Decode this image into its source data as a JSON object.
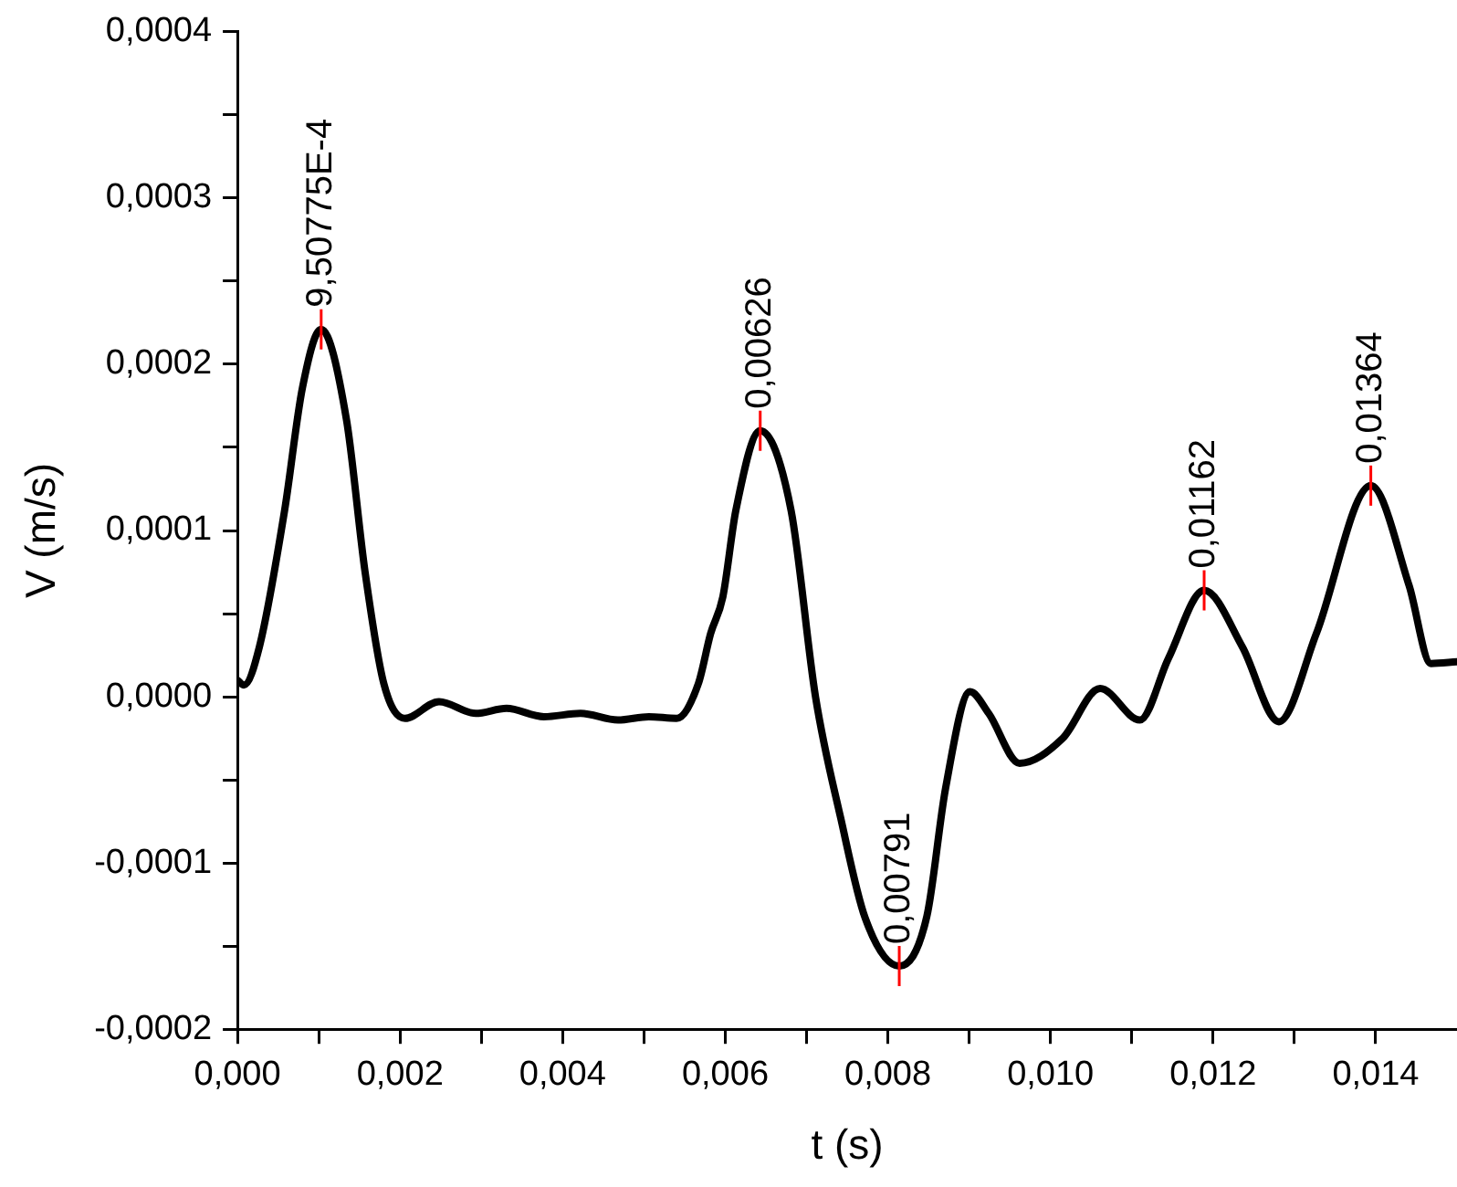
{
  "chart_data": {
    "type": "line",
    "xlabel": "t (s)",
    "ylabel": "V (m/s)",
    "legend": false,
    "grid": false,
    "marker": "none",
    "line_style": "solid",
    "xlim": [
      0,
      0.015
    ],
    "ylim": [
      -0.0002,
      0.0004
    ],
    "xticks": [
      {
        "value": 0,
        "label": "0,000"
      },
      {
        "value": 0.001,
        "label": null
      },
      {
        "value": 0.002,
        "label": "0,002"
      },
      {
        "value": 0.003,
        "label": null
      },
      {
        "value": 0.004,
        "label": "0,004"
      },
      {
        "value": 0.005,
        "label": null
      },
      {
        "value": 0.006,
        "label": "0,006"
      },
      {
        "value": 0.007,
        "label": null
      },
      {
        "value": 0.008,
        "label": "0,008"
      },
      {
        "value": 0.009,
        "label": null
      },
      {
        "value": 0.01,
        "label": "0,010"
      },
      {
        "value": 0.011,
        "label": null
      },
      {
        "value": 0.012,
        "label": "0,012"
      },
      {
        "value": 0.013,
        "label": null
      },
      {
        "value": 0.014,
        "label": "0,014"
      }
    ],
    "yticks": [
      {
        "value": -0.0002,
        "label": "-0,0002"
      },
      {
        "value": -0.00015,
        "label": null
      },
      {
        "value": -0.0001,
        "label": "-0,0001"
      },
      {
        "value": -5e-05,
        "label": null
      },
      {
        "value": 0,
        "label": "0,0000"
      },
      {
        "value": 5e-05,
        "label": null
      },
      {
        "value": 0.0001,
        "label": "0,0001"
      },
      {
        "value": 0.00015,
        "label": null
      },
      {
        "value": 0.0002,
        "label": "0,0002"
      },
      {
        "value": 0.00025,
        "label": null
      },
      {
        "value": 0.0003,
        "label": "0,0003"
      },
      {
        "value": 0.00035,
        "label": null
      },
      {
        "value": 0.0004,
        "label": "0,0004"
      }
    ],
    "x": [
      0,
      8e-05,
      0.00027,
      0.00058,
      0.0008,
      0.00103,
      0.00134,
      0.00157,
      0.0018,
      0.00206,
      0.00248,
      0.00293,
      0.00331,
      0.00377,
      0.00422,
      0.00468,
      0.00506,
      0.0054,
      0.00567,
      0.00582,
      0.00597,
      0.00613,
      0.00643,
      0.00681,
      0.00711,
      0.00742,
      0.00772,
      0.00814,
      0.00848,
      0.00871,
      0.00901,
      0.00924,
      0.00962,
      0.01015,
      0.01061,
      0.0111,
      0.01145,
      0.01189,
      0.01236,
      0.01281,
      0.01327,
      0.01394,
      0.01441,
      0.01468,
      0.015
    ],
    "series": [
      {
        "color": "#000000",
        "values": [
          1e-05,
          7e-06,
          3e-05,
          0.000112,
          0.000186,
          0.000221,
          0.000167,
          7.5e-05,
          8e-06,
          -1.3e-05,
          -3e-06,
          -1e-05,
          -7e-06,
          -1.2e-05,
          -1e-05,
          -1.4e-05,
          -1.2e-05,
          -1.3e-05,
          8e-06,
          3.8e-05,
          6e-05,
          0.000112,
          0.00016,
          0.000112,
          0,
          -7.3e-05,
          -0.000133,
          -0.000162,
          -0.000132,
          -5.5e-05,
          3e-06,
          -1e-05,
          -4e-05,
          -2.5e-05,
          5e-06,
          -1.4e-05,
          2.3e-05,
          6.4e-05,
          3e-05,
          -1.5e-05,
          3.8e-05,
          0.000127,
          6.7e-05,
          2e-05,
          2.1e-05
        ]
      }
    ],
    "annotations": [
      {
        "text": "9,50775E-4",
        "x": 0.00103,
        "y": 0.000221
      },
      {
        "text": "0,00626",
        "x": 0.00643,
        "y": 0.00016
      },
      {
        "text": "0,00791",
        "x": 0.00814,
        "y": -0.000162
      },
      {
        "text": "0,01162",
        "x": 0.01189,
        "y": 6.4e-05
      },
      {
        "text": "0,01364",
        "x": 0.01394,
        "y": 0.000127
      }
    ]
  }
}
